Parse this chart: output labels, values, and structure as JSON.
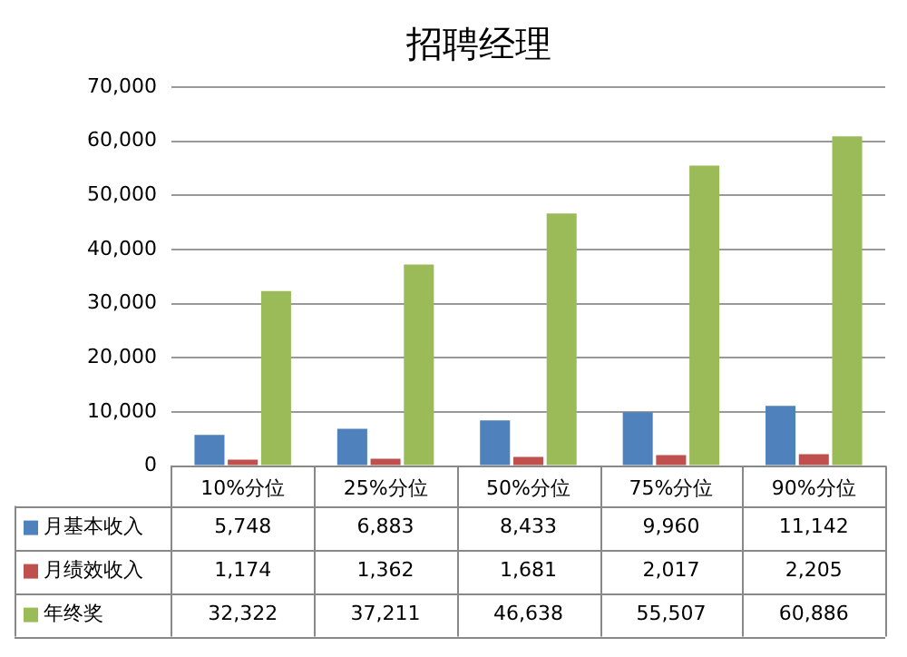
{
  "chart_data": {
    "type": "bar",
    "title": "招聘经理",
    "categories": [
      "10%分位",
      "25%分位",
      "50%分位",
      "75%分位",
      "90%分位"
    ],
    "series": [
      {
        "name": "月基本收入",
        "color": "#4f81bd",
        "values": [
          5748,
          6883,
          8433,
          9960,
          11142
        ],
        "value_labels": [
          "5,748",
          "6,883",
          "8,433",
          "9,960",
          "11,142"
        ]
      },
      {
        "name": "月绩效收入",
        "color": "#c0504d",
        "values": [
          1174,
          1362,
          1681,
          2017,
          2205
        ],
        "value_labels": [
          "1,174",
          "1,362",
          "1,681",
          "2,017",
          "2,205"
        ]
      },
      {
        "name": "年终奖",
        "color": "#9bbb59",
        "values": [
          32322,
          37211,
          46638,
          55507,
          60886
        ],
        "value_labels": [
          "32,322",
          "37,211",
          "46,638",
          "55,507",
          "60,886"
        ]
      }
    ],
    "ylim": [
      0,
      70000
    ],
    "yticks": [
      {
        "value": 0,
        "label": "0"
      },
      {
        "value": 10000,
        "label": "10,000"
      },
      {
        "value": 20000,
        "label": "20,000"
      },
      {
        "value": 30000,
        "label": "30,000"
      },
      {
        "value": 40000,
        "label": "40,000"
      },
      {
        "value": 50000,
        "label": "50,000"
      },
      {
        "value": 60000,
        "label": "60,000"
      },
      {
        "value": 70000,
        "label": "70,000"
      }
    ],
    "grid": "y",
    "legend": "bottom left"
  }
}
